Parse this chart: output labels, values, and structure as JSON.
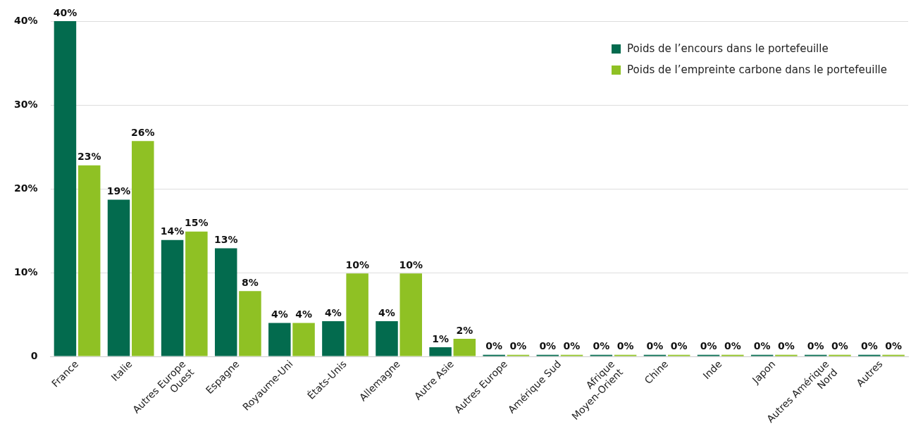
{
  "chart_data": {
    "type": "bar",
    "categories": [
      "France",
      "Italie",
      "Autres Europe\nOuest",
      "Espagne",
      "Royaume-Uni",
      "États-Unis",
      "Allemagne",
      "Autre Asie",
      "Autres Europe",
      "Amérique Sud",
      "Afrique\nMoyen-Orient",
      "Chine",
      "Inde",
      "Japon",
      "Autres Amérique\nNord",
      "Autres"
    ],
    "series": [
      {
        "name": "Poids de l’encours dans le portefeuille",
        "color": "#036b4e",
        "values": [
          40,
          18.7,
          13.9,
          12.9,
          4.0,
          4.2,
          4.2,
          1.1,
          0.2,
          0.2,
          0.2,
          0.2,
          0.2,
          0.2,
          0.2,
          0.2
        ],
        "value_labels": [
          "40%",
          "19%",
          "14%",
          "13%",
          "4%",
          "4%",
          "4%",
          "1%",
          "0%",
          "0%",
          "0%",
          "0%",
          "0%",
          "0%",
          "0%",
          "0%"
        ]
      },
      {
        "name": "Poids de l’empreinte carbone dans le portefeuille",
        "color": "#8fc124",
        "values": [
          22.8,
          25.7,
          14.9,
          7.8,
          4.0,
          9.9,
          9.9,
          2.1,
          0.2,
          0.2,
          0.2,
          0.2,
          0.2,
          0.2,
          0.2,
          0.2
        ],
        "value_labels": [
          "23%",
          "26%",
          "15%",
          "8%",
          "4%",
          "10%",
          "10%",
          "2%",
          "0%",
          "0%",
          "0%",
          "0%",
          "0%",
          "0%",
          "0%",
          "0%"
        ]
      }
    ],
    "ylim": [
      0,
      40
    ],
    "yticks": [
      0,
      {
        "value": 10,
        "label": "10%"
      },
      {
        "value": 20,
        "label": "20%"
      },
      {
        "value": 30,
        "label": "30%"
      },
      {
        "value": 40,
        "label": "40%"
      }
    ],
    "grid": "y",
    "legend": "top right"
  }
}
